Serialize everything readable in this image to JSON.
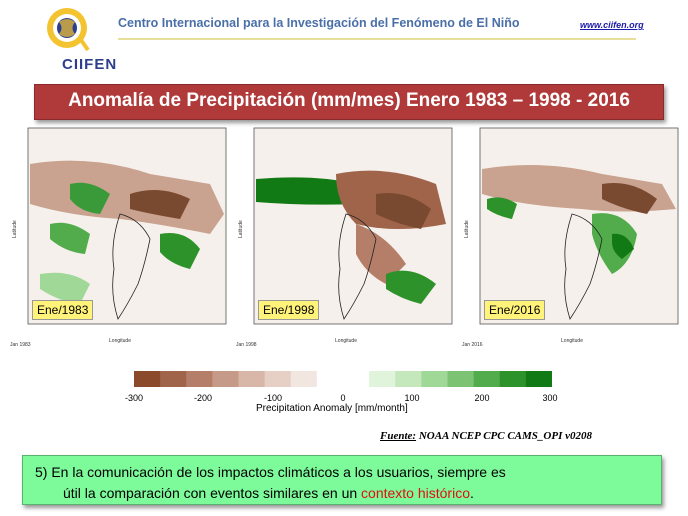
{
  "header": {
    "logo_text": "CIIFEN",
    "title": "Centro Internacional para la Investigación del Fenómeno de El Niño",
    "url": "www.ciifen.org"
  },
  "banner": {
    "title": "Anomalía de Precipitación (mm/mes) Enero 1983 – 1998 - 2016"
  },
  "maps": [
    {
      "label": "Ene/1983",
      "caption": "Jan 1983",
      "xlabel": "Longitude",
      "ylabel": "Latitude"
    },
    {
      "label": "Ene/1998",
      "caption": "Jan 1998",
      "xlabel": "Longitude",
      "ylabel": "Latitude"
    },
    {
      "label": "Ene/2016",
      "caption": "Jan 2016",
      "xlabel": "Longitude",
      "ylabel": "Latitude"
    }
  ],
  "legend": {
    "ticks": [
      "-300",
      "-200",
      "-100",
      "0",
      "100",
      "200",
      "300"
    ],
    "label": "Precipitation Anomaly [mm/month]",
    "colors": [
      "#8b4a2b",
      "#a0644a",
      "#b57e68",
      "#c69a88",
      "#d8b6a8",
      "#e6d0c6",
      "#f2e6e0",
      "#ffffff",
      "#ffffff",
      "#e0f4dc",
      "#c4e8bc",
      "#a0d898",
      "#7cc474",
      "#52ac4c",
      "#2e922a",
      "#127a14"
    ]
  },
  "source": {
    "label": "Fuente:",
    "text": " NOAA NCEP CPC CAMS_OPI v0208"
  },
  "note": {
    "line1": "5)  En la comunicación de los impactos climáticos a los usuarios, siempre es",
    "line2_prefix": "útil la comparación con eventos similares en un ",
    "line2_highlight": "contexto histórico",
    "line2_suffix": "."
  }
}
